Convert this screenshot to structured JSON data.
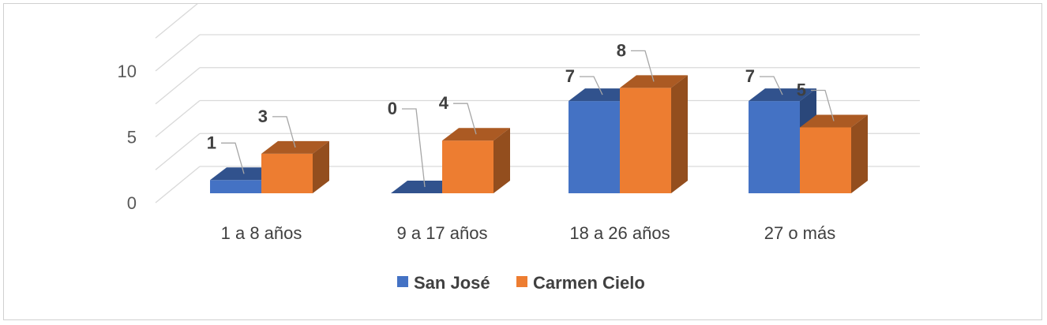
{
  "chart_data": {
    "type": "bar",
    "variant": "3d-clustered-column",
    "title": "",
    "xlabel": "",
    "ylabel": "",
    "categories": [
      "1 a 8 años",
      "9 a 17  años",
      "18 a 26  años",
      "27 o más"
    ],
    "series": [
      {
        "name": "San José",
        "color": "#4472C4",
        "values": [
          1,
          0,
          7,
          7
        ]
      },
      {
        "name": "Carmen Cielo",
        "color": "#ED7D31",
        "values": [
          3,
          4,
          8,
          5
        ]
      }
    ],
    "ylim": [
      0,
      10
    ],
    "yticks": [
      0,
      5,
      10
    ],
    "grid": true,
    "legend_position": "bottom",
    "data_labels": true
  }
}
